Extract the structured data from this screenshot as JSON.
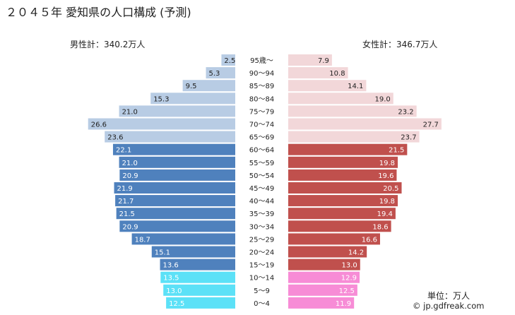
{
  "title": "２０４５年 愛知県の人口構成 (予測)",
  "male_total_label": "男性計：340.2万人",
  "female_total_label": "女性計：346.7万人",
  "unit_label": "単位：万人",
  "credit": "© jp.gdfreak.com",
  "colors": {
    "male_elderly": "#b8cce4",
    "male_working": "#4f81bd",
    "male_young": "#5ce1f7",
    "female_elderly": "#f2d7d9",
    "female_working": "#c0504d",
    "female_young": "#f78cd6"
  },
  "chart_data": {
    "type": "bar",
    "orientation": "horizontal-pyramid",
    "title": "２０４５年 愛知県の人口構成 (予測)",
    "unit": "万人",
    "categories": [
      "95歳～",
      "90～94",
      "85～89",
      "80～84",
      "75～79",
      "70～74",
      "65～69",
      "60～64",
      "55～59",
      "50～54",
      "45～49",
      "40～44",
      "35～39",
      "30～34",
      "25～29",
      "20～24",
      "15～19",
      "10～14",
      "5～9",
      "0～4"
    ],
    "groups": [
      "elderly",
      "elderly",
      "elderly",
      "elderly",
      "elderly",
      "elderly",
      "elderly",
      "working",
      "working",
      "working",
      "working",
      "working",
      "working",
      "working",
      "working",
      "working",
      "working",
      "young",
      "young",
      "young"
    ],
    "series": [
      {
        "name": "男性",
        "total": "340.2万人",
        "values": [
          2.5,
          5.3,
          9.5,
          15.3,
          21.0,
          26.6,
          23.6,
          22.1,
          21.0,
          20.9,
          21.9,
          21.7,
          21.5,
          20.9,
          18.7,
          15.1,
          13.6,
          13.5,
          13.0,
          12.5
        ]
      },
      {
        "name": "女性",
        "total": "346.7万人",
        "values": [
          7.9,
          10.8,
          14.1,
          19.0,
          23.2,
          27.7,
          23.7,
          21.5,
          19.8,
          19.6,
          20.5,
          19.8,
          19.4,
          18.6,
          16.6,
          14.2,
          13.0,
          12.9,
          12.5,
          11.9
        ]
      }
    ]
  }
}
